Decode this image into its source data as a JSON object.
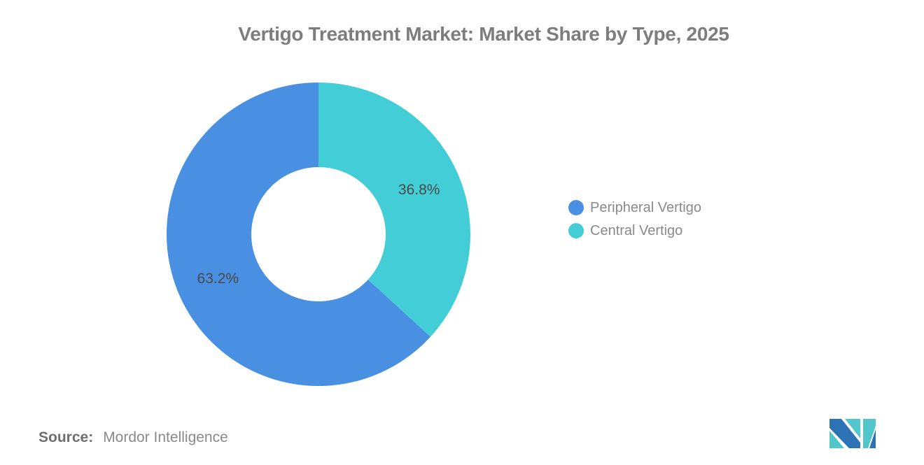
{
  "title": "Vertigo Treatment Market: Market Share by Type, 2025",
  "chart_data": {
    "type": "pie",
    "subtype": "donut",
    "title": "Vertigo Treatment Market: Market Share by Type, 2025",
    "categories": [
      "Peripheral Vertigo",
      "Central Vertigo"
    ],
    "values": [
      63.2,
      36.8
    ],
    "slices": [
      {
        "label": "Peripheral Vertigo",
        "value": 63.2,
        "display": "63.2%",
        "color": "#4990E2"
      },
      {
        "label": "Central Vertigo",
        "value": 36.8,
        "display": "36.8%",
        "color": "#43CED7"
      }
    ],
    "start_angle_deg": 132.48,
    "direction": "clockwise",
    "outer_radius": 217,
    "inner_radius": 96,
    "label_radius": 157,
    "label_color": "#4a4a4a",
    "legend_position": "right",
    "background": "#ffffff"
  },
  "source": {
    "label": "Source:",
    "text": "Mordor Intelligence"
  },
  "logo": {
    "name": "mordor-intelligence-logo",
    "blue": "#2C73B5",
    "teal": "#52C7CB"
  }
}
